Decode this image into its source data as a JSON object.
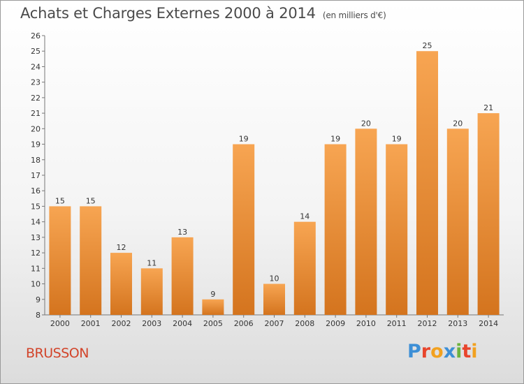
{
  "header": {
    "title": "Achats et Charges Externes 2000 à 2014",
    "subtitle": "(en milliers d'€)"
  },
  "footer": {
    "commune": "BRUSSON",
    "logo_text": "Proxiti",
    "logo_colors": [
      "#3d8fd6",
      "#e8452c",
      "#f2a11f",
      "#3d8fd6",
      "#6cb33f",
      "#e8452c",
      "#f2a11f"
    ]
  },
  "chart_data": {
    "type": "bar",
    "title": "Achats et Charges Externes 2000 à 2014",
    "subtitle": "(en milliers d'€)",
    "categories": [
      "2000",
      "2001",
      "2002",
      "2003",
      "2004",
      "2005",
      "2006",
      "2007",
      "2008",
      "2009",
      "2010",
      "2011",
      "2012",
      "2013",
      "2014"
    ],
    "values": [
      15,
      15,
      12,
      11,
      13,
      9,
      19,
      10,
      14,
      19,
      20,
      19,
      25,
      20,
      21
    ],
    "ylim": [
      8,
      26
    ],
    "yticks": [
      8,
      9,
      10,
      11,
      12,
      13,
      14,
      15,
      16,
      17,
      18,
      19,
      20,
      21,
      22,
      23,
      24,
      25,
      26
    ],
    "xlabel": "",
    "ylabel": "",
    "grid": false,
    "bar_color_top": "#f7a552",
    "bar_color_bottom": "#d4741e"
  }
}
